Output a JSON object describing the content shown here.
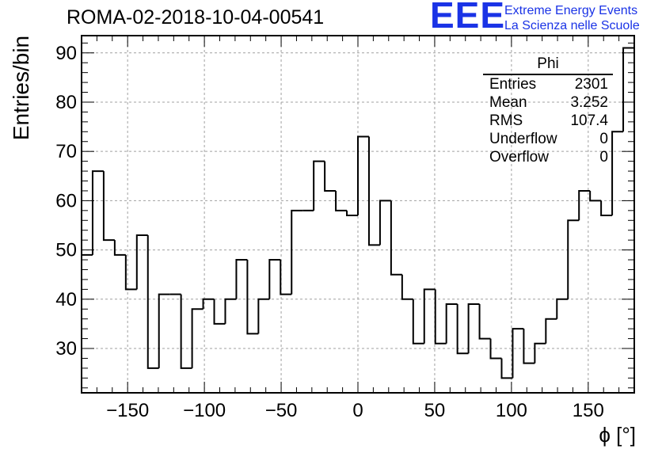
{
  "chart_data": {
    "type": "bar",
    "style": "step-histogram",
    "title": "ROMA-02-2018-10-04-00541",
    "xlabel": "ϕ [°]",
    "ylabel": "Entries/bin",
    "xlim": [
      -180,
      180
    ],
    "ylim": [
      21,
      93.5
    ],
    "bin_width": 7.2,
    "grid": true,
    "x_ticks": [
      -150,
      -100,
      -50,
      0,
      50,
      100,
      150
    ],
    "x_tick_labels": [
      "−150",
      "−100",
      "−50",
      "0",
      "50",
      "100",
      "150"
    ],
    "y_ticks": [
      30,
      40,
      50,
      60,
      70,
      80,
      90
    ],
    "y_tick_labels": [
      "30",
      "40",
      "50",
      "60",
      "70",
      "80",
      "90"
    ],
    "values": [
      49,
      66,
      52,
      49,
      42,
      53,
      26,
      41,
      41,
      26,
      38,
      40,
      35,
      40,
      48,
      33,
      40,
      48,
      41,
      58,
      58,
      68,
      62,
      58,
      57,
      73,
      51,
      60,
      45,
      40,
      31,
      42,
      31,
      39,
      29,
      39,
      32,
      28,
      24,
      34,
      27,
      31,
      36,
      40,
      56,
      62,
      60,
      57,
      74,
      91
    ]
  },
  "stats_box": {
    "title": "Phi",
    "rows": [
      {
        "key": "Entries",
        "value": "2301"
      },
      {
        "key": "Mean",
        "value": "3.252"
      },
      {
        "key": "RMS",
        "value": "107.4"
      },
      {
        "key": "Underflow",
        "value": "0"
      },
      {
        "key": "Overflow",
        "value": "0"
      }
    ]
  },
  "logo": {
    "letters": "EEE",
    "line1": "Extreme Energy Events",
    "line2": "La Scienza nelle Scuole",
    "color": "#1a33e6"
  }
}
